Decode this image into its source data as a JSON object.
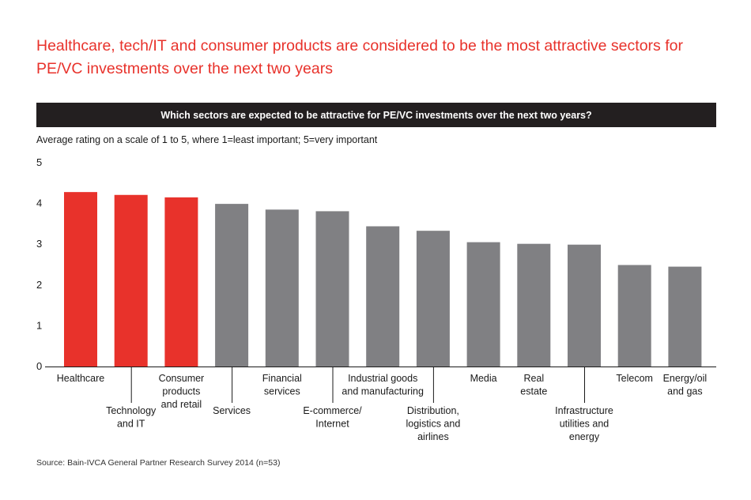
{
  "headline": "Healthcare, tech/IT and consumer products are considered to be the most attractive sectors for PE/VC investments over the next two years",
  "question": "Which sectors are expected to be attractive for PE/VC investments over the next two years?",
  "subtitle": "Average rating on a scale of 1 to 5, where 1=least important; 5=very important",
  "source": "Source: Bain-IVCA General Partner Research Survey 2014 (n=53)",
  "colors": {
    "highlight": "#e8322b",
    "default": "#808083",
    "question_bar": "#231f20"
  },
  "chart_data": {
    "type": "bar",
    "ylim": [
      0,
      5
    ],
    "yticks": [
      0,
      1,
      2,
      3,
      4,
      5
    ],
    "categories": [
      "Healthcare",
      "Technology and IT",
      "Consumer products and retail",
      "Services",
      "Financial services",
      "E-commerce/ Internet",
      "Industrial goods and manufacturing",
      "Distribution, logistics and airlines",
      "Media",
      "Real estate",
      "Infrastructure utilities and energy",
      "Telecom",
      "Energy/oil and gas"
    ],
    "category_label_lines": [
      [
        "Healthcare"
      ],
      [
        "Technology",
        "and IT"
      ],
      [
        "Consumer",
        "products",
        "and retail"
      ],
      [
        "Services"
      ],
      [
        "Financial",
        "services"
      ],
      [
        "E-commerce/",
        "Internet"
      ],
      [
        "Industrial goods",
        "and manufacturing"
      ],
      [
        "Distribution,",
        "logistics and",
        "airlines"
      ],
      [
        "Media"
      ],
      [
        "Real",
        "estate"
      ],
      [
        "Infrastructure",
        "utilities and",
        "energy"
      ],
      [
        "Telecom"
      ],
      [
        "Energy/oil",
        "and gas"
      ]
    ],
    "label_level": [
      "upper",
      "lower",
      "upper",
      "lower",
      "upper",
      "lower",
      "upper",
      "lower",
      "upper",
      "upper",
      "lower",
      "upper",
      "upper"
    ],
    "values": [
      4.28,
      4.21,
      4.15,
      3.99,
      3.85,
      3.81,
      3.44,
      3.33,
      3.05,
      3.01,
      2.99,
      2.49,
      2.45
    ],
    "highlighted": [
      true,
      true,
      true,
      false,
      false,
      false,
      false,
      false,
      false,
      false,
      false,
      false,
      false
    ]
  }
}
